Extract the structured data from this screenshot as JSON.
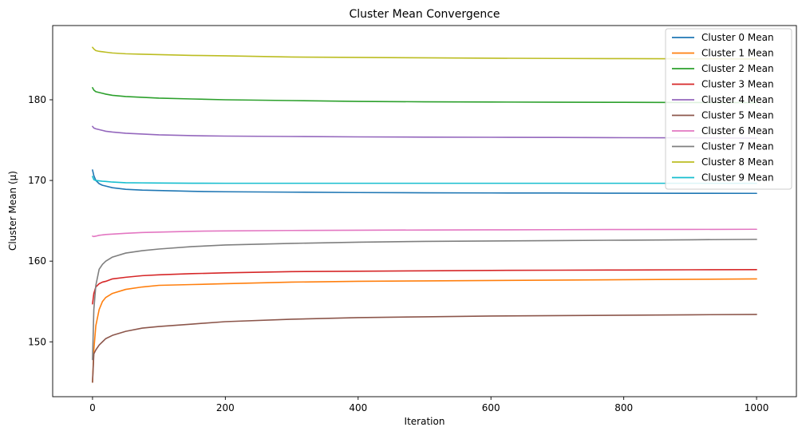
{
  "chart_data": {
    "type": "line",
    "title": "Cluster Mean Convergence",
    "xlabel": "Iteration",
    "ylabel": "Cluster Mean (μ)",
    "xlim": [
      -60,
      1060
    ],
    "ylim": [
      143.2,
      189.2
    ],
    "xticks": [
      0,
      200,
      400,
      600,
      800,
      1000
    ],
    "yticks": [
      150,
      160,
      170,
      180
    ],
    "grid": false,
    "legend_position": "top-right",
    "series": [
      {
        "name": "Cluster 0 Mean",
        "color": "#1f77b4",
        "x": [
          0,
          2,
          5,
          10,
          15,
          20,
          30,
          50,
          75,
          100,
          150,
          200,
          300,
          400,
          500,
          600,
          700,
          800,
          900,
          1000
        ],
        "values": [
          171.3,
          170.6,
          170.0,
          169.6,
          169.4,
          169.3,
          169.1,
          168.9,
          168.8,
          168.75,
          168.65,
          168.6,
          168.55,
          168.5,
          168.47,
          168.45,
          168.44,
          168.42,
          168.41,
          168.4
        ]
      },
      {
        "name": "Cluster 1 Mean",
        "color": "#ff7f0e",
        "x": [
          0,
          2,
          5,
          10,
          15,
          20,
          30,
          50,
          75,
          100,
          150,
          200,
          300,
          400,
          500,
          600,
          700,
          800,
          900,
          1000
        ],
        "values": [
          145.0,
          149.0,
          152.0,
          154.0,
          155.0,
          155.5,
          156.0,
          156.5,
          156.8,
          157.0,
          157.1,
          157.2,
          157.4,
          157.5,
          157.55,
          157.6,
          157.65,
          157.7,
          157.75,
          157.8
        ]
      },
      {
        "name": "Cluster 2 Mean",
        "color": "#2ca02c",
        "x": [
          0,
          2,
          5,
          10,
          15,
          20,
          30,
          50,
          75,
          100,
          150,
          200,
          300,
          400,
          500,
          600,
          700,
          800,
          900,
          1000
        ],
        "values": [
          181.5,
          181.2,
          181.0,
          180.9,
          180.8,
          180.7,
          180.55,
          180.4,
          180.3,
          180.2,
          180.1,
          180.0,
          179.9,
          179.8,
          179.75,
          179.72,
          179.7,
          179.68,
          179.66,
          179.65
        ]
      },
      {
        "name": "Cluster 3 Mean",
        "color": "#d62728",
        "x": [
          0,
          2,
          5,
          10,
          15,
          20,
          30,
          50,
          75,
          100,
          150,
          200,
          300,
          400,
          500,
          600,
          700,
          800,
          900,
          1000
        ],
        "values": [
          154.7,
          156.0,
          156.8,
          157.2,
          157.4,
          157.5,
          157.8,
          158.0,
          158.2,
          158.3,
          158.45,
          158.55,
          158.7,
          158.75,
          158.8,
          158.85,
          158.88,
          158.9,
          158.93,
          158.95
        ]
      },
      {
        "name": "Cluster 4 Mean",
        "color": "#9467bd",
        "x": [
          0,
          2,
          5,
          10,
          15,
          20,
          30,
          50,
          75,
          100,
          150,
          200,
          300,
          400,
          500,
          600,
          700,
          800,
          900,
          1000
        ],
        "values": [
          176.7,
          176.5,
          176.4,
          176.3,
          176.2,
          176.1,
          176.0,
          175.85,
          175.75,
          175.65,
          175.55,
          175.5,
          175.45,
          175.4,
          175.37,
          175.35,
          175.33,
          175.3,
          175.28,
          175.25
        ]
      },
      {
        "name": "Cluster 5 Mean",
        "color": "#8c564b",
        "x": [
          0,
          2,
          5,
          10,
          15,
          20,
          30,
          50,
          75,
          100,
          150,
          200,
          300,
          400,
          500,
          600,
          700,
          800,
          900,
          1000
        ],
        "values": [
          145.0,
          148.5,
          149.0,
          149.6,
          150.0,
          150.4,
          150.8,
          151.3,
          151.7,
          151.9,
          152.2,
          152.5,
          152.8,
          153.0,
          153.1,
          153.2,
          153.25,
          153.3,
          153.35,
          153.4
        ]
      },
      {
        "name": "Cluster 6 Mean",
        "color": "#e377c2",
        "x": [
          0,
          2,
          5,
          10,
          15,
          20,
          30,
          50,
          75,
          100,
          150,
          200,
          300,
          400,
          500,
          600,
          700,
          800,
          900,
          1000
        ],
        "values": [
          163.1,
          163.05,
          163.1,
          163.2,
          163.25,
          163.3,
          163.35,
          163.45,
          163.55,
          163.6,
          163.7,
          163.75,
          163.8,
          163.83,
          163.86,
          163.88,
          163.9,
          163.92,
          163.93,
          163.95
        ]
      },
      {
        "name": "Cluster 7 Mean",
        "color": "#7f7f7f",
        "x": [
          0,
          2,
          5,
          10,
          15,
          20,
          30,
          50,
          75,
          100,
          150,
          200,
          300,
          400,
          500,
          600,
          700,
          800,
          900,
          1000
        ],
        "values": [
          147.8,
          154.0,
          157.0,
          159.0,
          159.6,
          160.0,
          160.5,
          161.0,
          161.3,
          161.5,
          161.8,
          162.0,
          162.2,
          162.35,
          162.45,
          162.5,
          162.55,
          162.6,
          162.65,
          162.7
        ]
      },
      {
        "name": "Cluster 8 Mean",
        "color": "#bcbd22",
        "x": [
          0,
          2,
          5,
          10,
          15,
          20,
          30,
          50,
          75,
          100,
          150,
          200,
          300,
          400,
          500,
          600,
          700,
          800,
          900,
          1000
        ],
        "values": [
          186.5,
          186.3,
          186.1,
          186.0,
          185.95,
          185.9,
          185.8,
          185.7,
          185.65,
          185.6,
          185.5,
          185.45,
          185.3,
          185.25,
          185.2,
          185.15,
          185.12,
          185.1,
          185.08,
          185.05
        ]
      },
      {
        "name": "Cluster 9 Mean",
        "color": "#17becf",
        "x": [
          0,
          2,
          5,
          10,
          15,
          20,
          30,
          50,
          75,
          100,
          150,
          200,
          300,
          400,
          500,
          600,
          700,
          800,
          900,
          1000
        ],
        "values": [
          170.5,
          170.1,
          170.0,
          169.95,
          169.9,
          169.88,
          169.8,
          169.72,
          169.7,
          169.68,
          169.66,
          169.65,
          169.65,
          169.65,
          169.65,
          169.65,
          169.65,
          169.65,
          169.65,
          169.65
        ]
      }
    ]
  }
}
